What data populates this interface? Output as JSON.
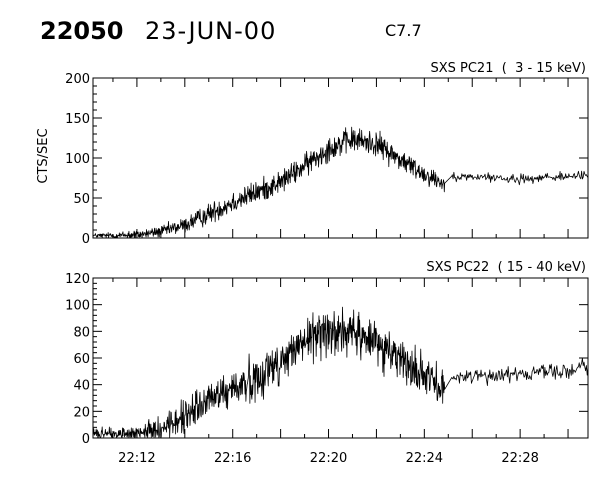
{
  "header": {
    "event_number": "22050",
    "date": "23-JUN-00",
    "flare_class": "C7.7"
  },
  "chart_data": [
    {
      "type": "line",
      "title": "SXS PC21  (  3 - 15 keV)",
      "xlabel": "",
      "ylabel": "CTS/SEC",
      "x_unit": "UT time (HH:MM)",
      "xlim": [
        "22:10:10",
        "22:30:50"
      ],
      "ylim": [
        0,
        200
      ],
      "y_ticks": [
        0,
        50,
        100,
        150,
        200
      ],
      "x_tick_labels": [
        "22:12",
        "22:16",
        "22:20",
        "22:24",
        "22:28"
      ],
      "grid": false,
      "series": [
        {
          "color": "#000000",
          "x": [
            "22:10:10",
            "22:11:00",
            "22:12:00",
            "22:13:00",
            "22:14:00",
            "22:15:00",
            "22:16:00",
            "22:17:00",
            "22:18:00",
            "22:19:00",
            "22:20:00",
            "22:21:00",
            "22:22:00",
            "22:23:00",
            "22:24:00",
            "22:24:50",
            "22:25:10",
            "22:26:00",
            "22:27:00",
            "22:28:00",
            "22:29:00",
            "22:30:00",
            "22:30:50"
          ],
          "y": [
            3,
            3,
            4,
            8,
            16,
            30,
            45,
            57,
            70,
            90,
            112,
            123,
            118,
            98,
            80,
            68,
            78,
            76,
            75,
            74,
            76,
            77,
            78
          ],
          "noise": [
            2,
            3,
            4,
            5,
            7,
            9,
            10,
            10,
            10,
            10,
            11,
            11,
            11,
            10,
            9,
            8,
            4,
            4,
            4,
            4,
            4,
            4,
            5
          ]
        }
      ]
    },
    {
      "type": "line",
      "title": "SXS PC22  ( 15 - 40 keV)",
      "xlabel": "",
      "ylabel": "",
      "x_unit": "UT time (HH:MM)",
      "xlim": [
        "22:10:10",
        "22:30:50"
      ],
      "ylim": [
        0,
        120
      ],
      "y_ticks": [
        0,
        20,
        40,
        60,
        80,
        100,
        120
      ],
      "x_tick_labels": [
        "22:12",
        "22:16",
        "22:20",
        "22:24",
        "22:28"
      ],
      "grid": false,
      "series": [
        {
          "color": "#000000",
          "x": [
            "22:10:10",
            "22:11:00",
            "22:12:00",
            "22:13:00",
            "22:14:00",
            "22:15:00",
            "22:16:00",
            "22:17:00",
            "22:18:00",
            "22:19:00",
            "22:20:00",
            "22:21:00",
            "22:22:00",
            "22:23:00",
            "22:24:00",
            "22:24:50",
            "22:25:10",
            "22:26:00",
            "22:27:00",
            "22:28:00",
            "22:29:00",
            "22:30:00",
            "22:30:50"
          ],
          "y": [
            3,
            3,
            3,
            7,
            16,
            28,
            37,
            45,
            57,
            72,
            82,
            78,
            72,
            60,
            46,
            36,
            46,
            47,
            47,
            48,
            50,
            51,
            52
          ],
          "noise": [
            3,
            3,
            4,
            6,
            9,
            10,
            10,
            11,
            11,
            11,
            12,
            12,
            12,
            11,
            10,
            9,
            4,
            4,
            4,
            4,
            4,
            5,
            5
          ]
        }
      ]
    }
  ]
}
